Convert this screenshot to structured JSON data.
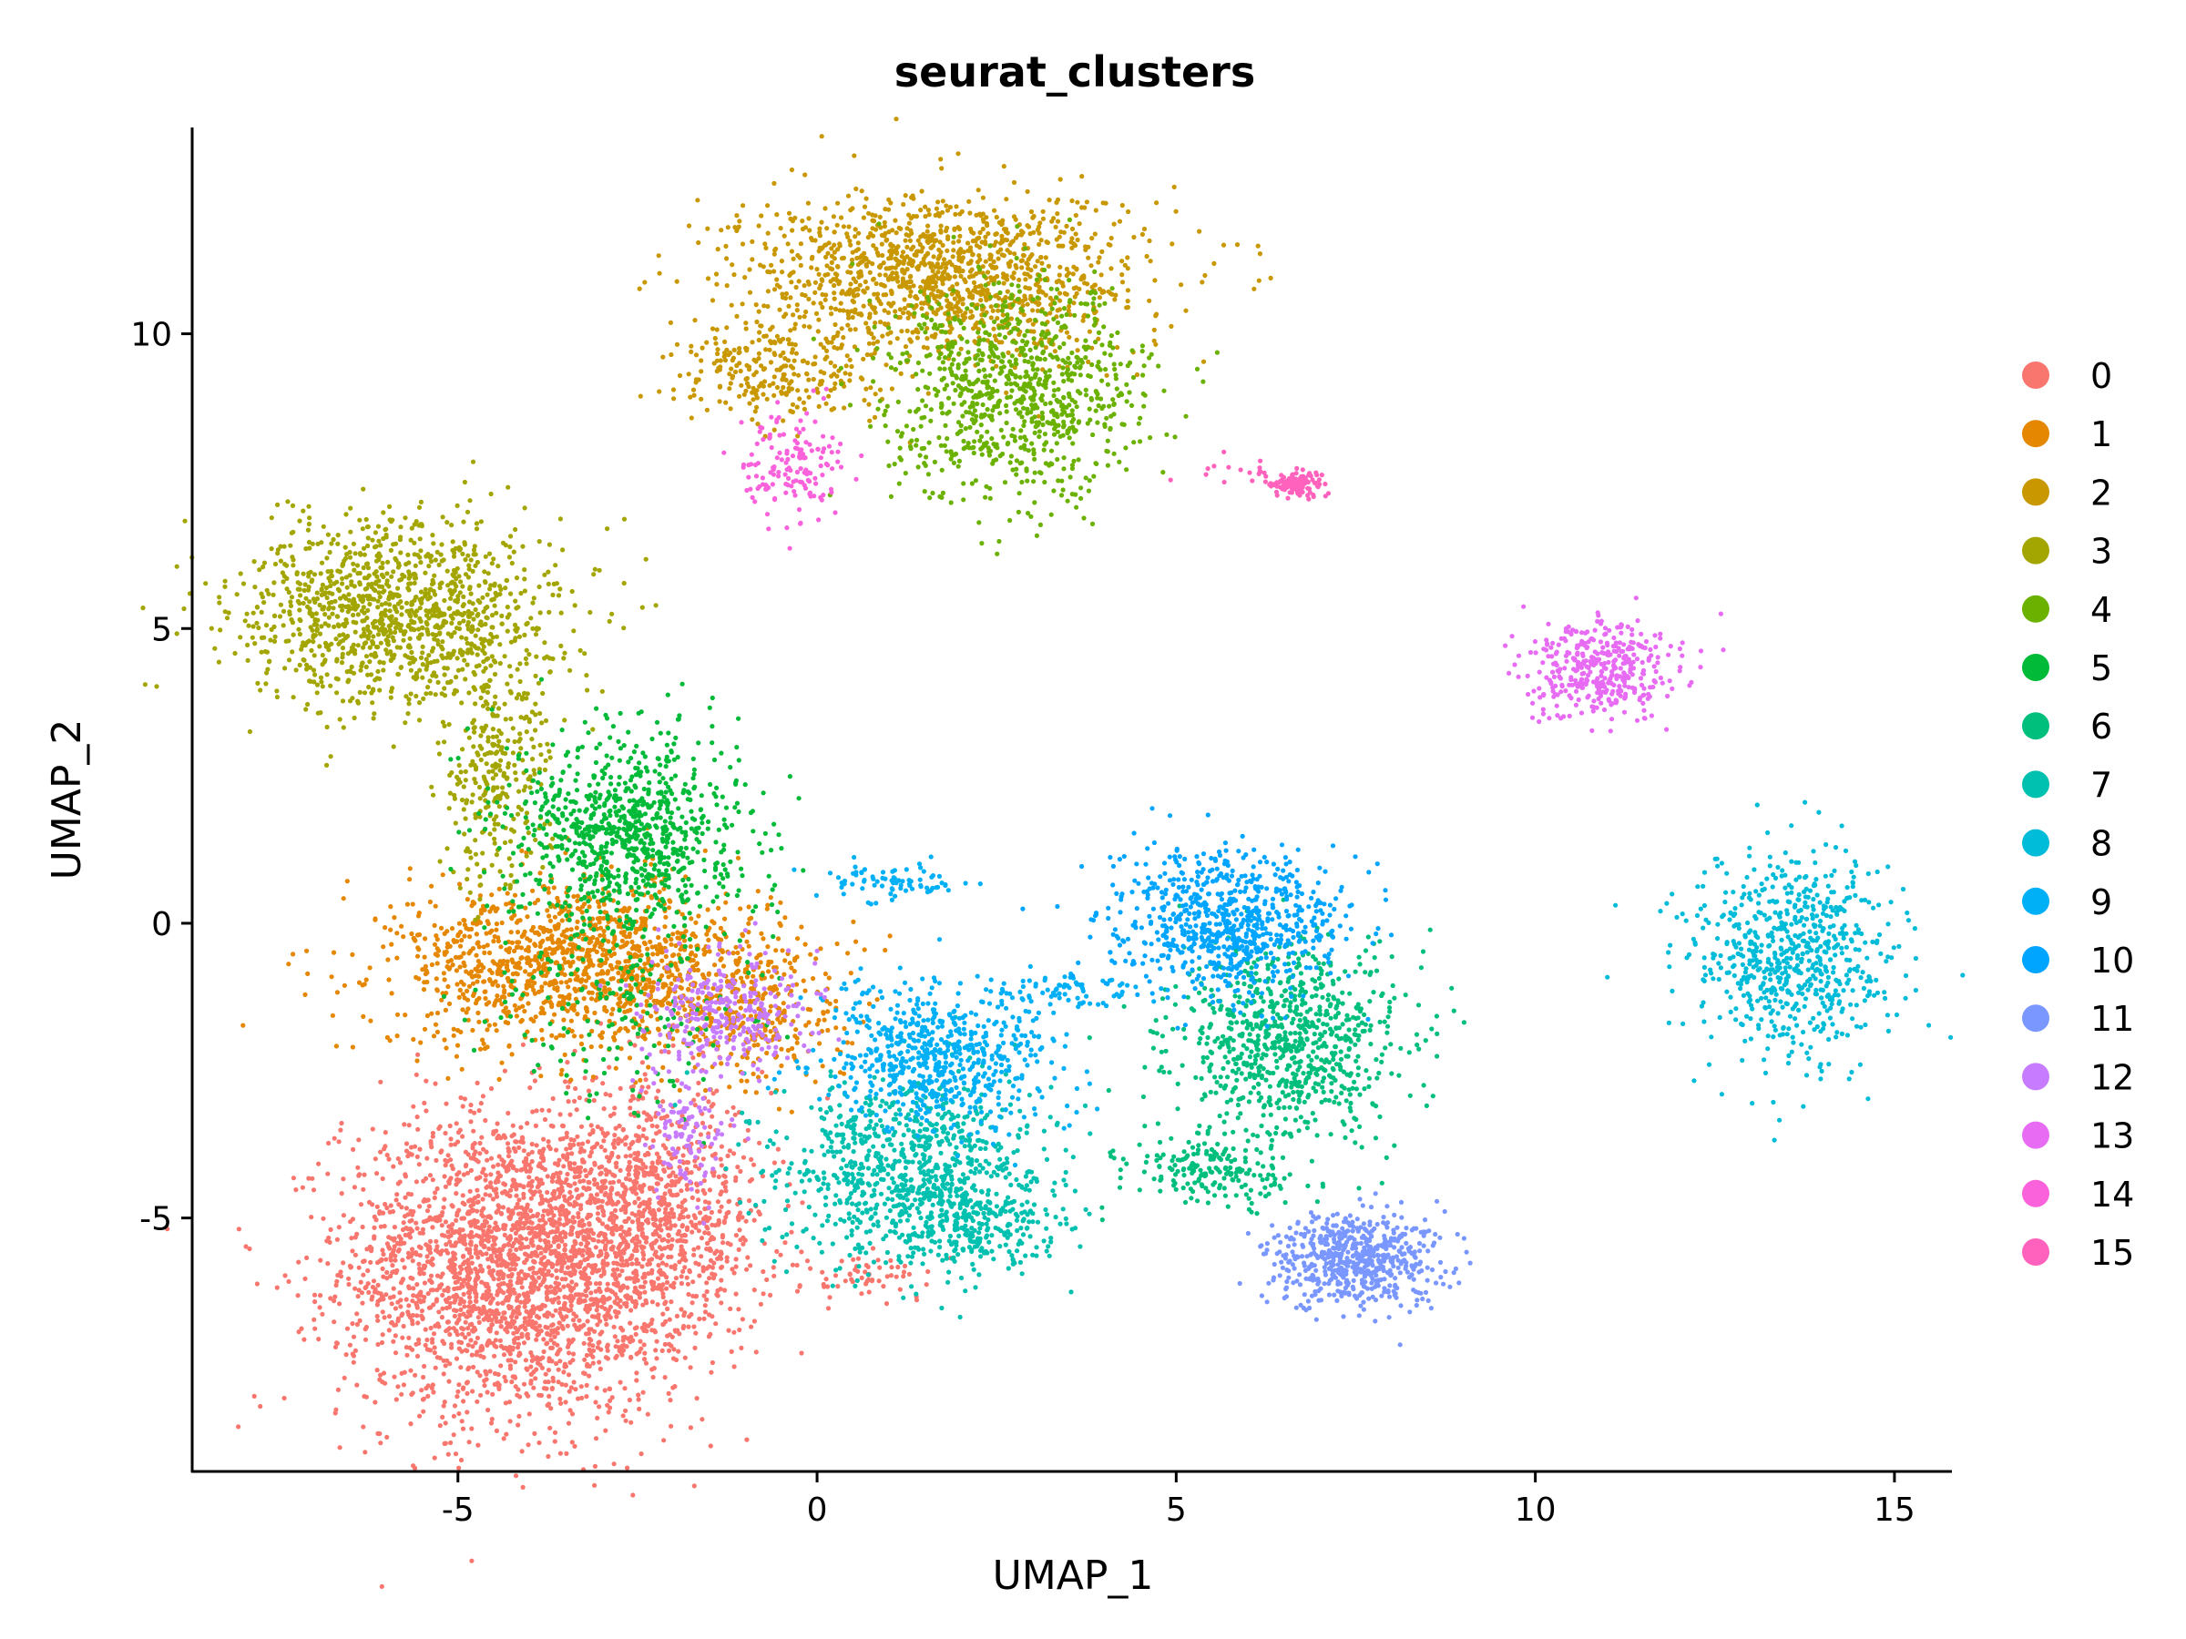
{
  "chart_data": {
    "type": "scatter",
    "title": "seurat_clusters",
    "xlabel": "UMAP_1",
    "ylabel": "UMAP_2",
    "xlim": [
      -8.7,
      15.8
    ],
    "ylim": [
      -9.3,
      13.5
    ],
    "x_ticks": [
      -5,
      0,
      5,
      10,
      15
    ],
    "y_ticks": [
      -5,
      0,
      5,
      10
    ],
    "x_tick_labels": [
      "-5",
      "0",
      "5",
      "10",
      "15"
    ],
    "y_tick_labels": [
      "-5",
      "0",
      "5",
      "10"
    ],
    "grid": false,
    "legend_position": "right",
    "series": [
      {
        "name": "0",
        "color": "#F8766D",
        "clusters": [
          {
            "cx": -4.2,
            "cy": -5.8,
            "sx": 1.2,
            "sy": 1.3,
            "n": 2600
          },
          {
            "cx": -2.3,
            "cy": -5.0,
            "sx": 0.8,
            "sy": 1.1,
            "n": 900
          },
          {
            "cx": 0.8,
            "cy": -6.0,
            "sx": 0.5,
            "sy": 0.2,
            "n": 60
          }
        ]
      },
      {
        "name": "1",
        "color": "#E58700",
        "clusters": [
          {
            "cx": -3.3,
            "cy": -0.7,
            "sx": 1.3,
            "sy": 0.7,
            "n": 1300
          },
          {
            "cx": -0.9,
            "cy": -1.5,
            "sx": 0.7,
            "sy": 0.7,
            "n": 300
          }
        ]
      },
      {
        "name": "2",
        "color": "#C99800",
        "clusters": [
          {
            "cx": 1.7,
            "cy": 11.0,
            "sx": 1.4,
            "sy": 0.7,
            "n": 1300
          },
          {
            "cx": -0.6,
            "cy": 9.3,
            "sx": 0.7,
            "sy": 0.4,
            "n": 250
          }
        ]
      },
      {
        "name": "3",
        "color": "#A3A500",
        "clusters": [
          {
            "cx": -5.8,
            "cy": 5.3,
            "sx": 1.1,
            "sy": 0.8,
            "n": 1200
          },
          {
            "cx": -4.5,
            "cy": 2.5,
            "sx": 0.4,
            "sy": 1.0,
            "n": 300
          }
        ]
      },
      {
        "name": "4",
        "color": "#6BB100",
        "clusters": [
          {
            "cx": 2.8,
            "cy": 9.0,
            "sx": 0.9,
            "sy": 0.9,
            "n": 900
          }
        ]
      },
      {
        "name": "5",
        "color": "#00BA38",
        "clusters": [
          {
            "cx": -2.6,
            "cy": 1.5,
            "sx": 0.8,
            "sy": 0.9,
            "n": 900
          },
          {
            "cx": -2.8,
            "cy": -1.5,
            "sx": 0.9,
            "sy": 0.8,
            "n": 150
          }
        ]
      },
      {
        "name": "6",
        "color": "#00BF7D",
        "clusters": [
          {
            "cx": 6.6,
            "cy": -2.0,
            "sx": 0.8,
            "sy": 0.8,
            "n": 800
          },
          {
            "cx": 5.5,
            "cy": -4.2,
            "sx": 0.6,
            "sy": 0.3,
            "n": 200
          }
        ]
      },
      {
        "name": "7",
        "color": "#00C0AF",
        "clusters": [
          {
            "cx": 1.3,
            "cy": -4.2,
            "sx": 0.9,
            "sy": 0.8,
            "n": 900
          },
          {
            "cx": 2.3,
            "cy": -5.2,
            "sx": 0.6,
            "sy": 0.4,
            "n": 200
          }
        ]
      },
      {
        "name": "8",
        "color": "#00BCD8",
        "clusters": [
          {
            "cx": 13.6,
            "cy": -0.6,
            "sx": 0.7,
            "sy": 0.9,
            "n": 700
          }
        ]
      },
      {
        "name": "9",
        "color": "#00B0F6",
        "clusters": [
          {
            "cx": 1.7,
            "cy": -2.3,
            "sx": 0.8,
            "sy": 0.6,
            "n": 650
          },
          {
            "cx": 1.1,
            "cy": 0.7,
            "sx": 0.5,
            "sy": 0.15,
            "n": 80
          },
          {
            "cx": 3.5,
            "cy": -1.1,
            "sx": 0.6,
            "sy": 0.15,
            "n": 80
          }
        ]
      },
      {
        "name": "10",
        "color": "#00A5FF",
        "clusters": [
          {
            "cx": 5.7,
            "cy": 0.0,
            "sx": 0.8,
            "sy": 0.6,
            "n": 750
          }
        ]
      },
      {
        "name": "11",
        "color": "#7997FF",
        "clusters": [
          {
            "cx": 7.5,
            "cy": -5.7,
            "sx": 0.6,
            "sy": 0.4,
            "n": 600
          }
        ]
      },
      {
        "name": "12",
        "color": "#C77CFF",
        "clusters": [
          {
            "cx": -1.2,
            "cy": -1.5,
            "sx": 0.6,
            "sy": 0.5,
            "n": 300
          },
          {
            "cx": -1.8,
            "cy": -3.6,
            "sx": 0.3,
            "sy": 0.5,
            "n": 100
          }
        ]
      },
      {
        "name": "13",
        "color": "#E76BF3",
        "clusters": [
          {
            "cx": 10.9,
            "cy": 4.3,
            "sx": 0.5,
            "sy": 0.4,
            "n": 400
          }
        ]
      },
      {
        "name": "14",
        "color": "#FA62DB",
        "clusters": [
          {
            "cx": -0.4,
            "cy": 7.8,
            "sx": 0.4,
            "sy": 0.5,
            "n": 150
          }
        ]
      },
      {
        "name": "15",
        "color": "#FF62BC",
        "clusters": [
          {
            "cx": 6.7,
            "cy": 7.45,
            "sx": 0.2,
            "sy": 0.1,
            "n": 120
          },
          {
            "cx": 6.0,
            "cy": 7.7,
            "sx": 0.4,
            "sy": 0.15,
            "n": 20
          }
        ]
      }
    ]
  }
}
